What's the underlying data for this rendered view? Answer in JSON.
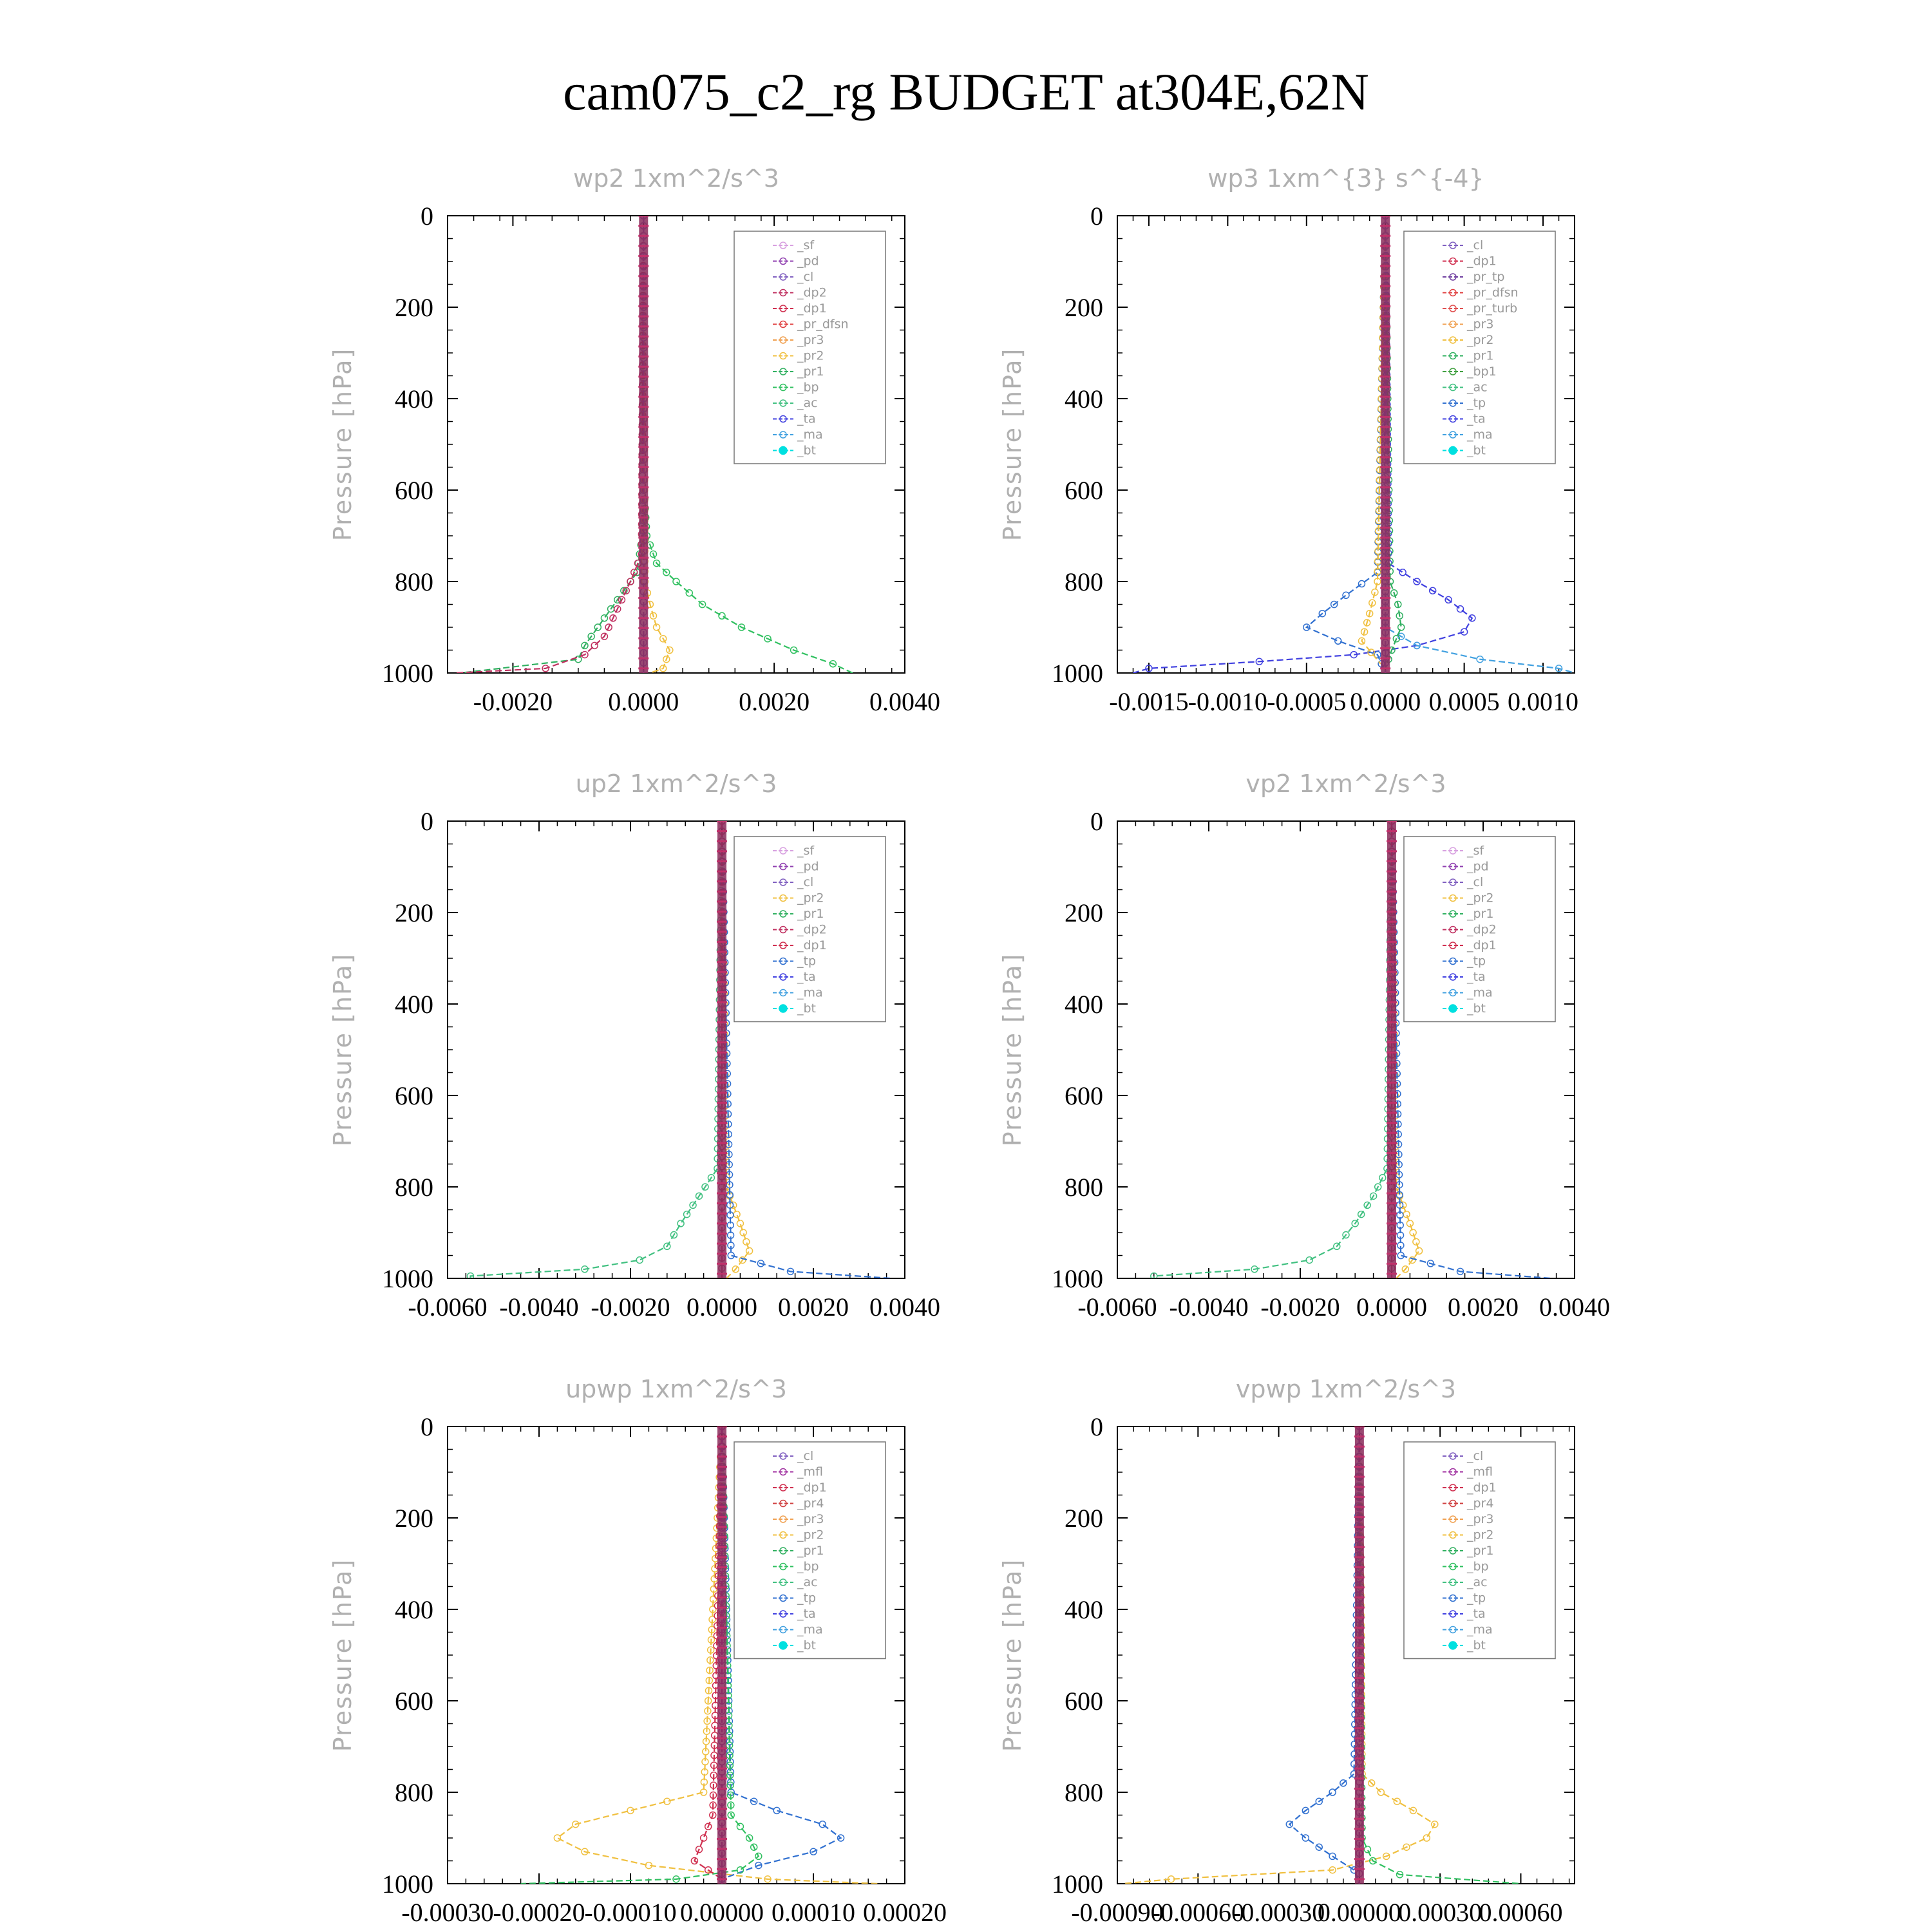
{
  "page_title": "cam075_c2_rg  BUDGET at304E,62N",
  "colors": {
    "sf": "#d8a0e0",
    "pd": "#9040b0",
    "cl": "#8060c0",
    "mfl": "#a030a0",
    "dp2": "#c03060",
    "dp1": "#d03050",
    "pr_dfsn": "#e04040",
    "pr_turb": "#e05050",
    "pr_tp": "#7040a0",
    "pr4": "#d04040",
    "pr3": "#f0a050",
    "pr2": "#f0c040",
    "pr1": "#30b060",
    "bp": "#30c060",
    "bp1": "#40a040",
    "ac": "#40c080",
    "tp": "#3070d0",
    "ta": "#4040e0",
    "ma": "#40a0e0",
    "bt": "#00e0e0"
  },
  "chart_data": [
    {
      "type": "line",
      "title": "wp2   1xm^2/s^3",
      "ylabel": "Pressure [hPa]",
      "ylim": [
        1000,
        0
      ],
      "xlim": [
        -0.003,
        0.004
      ],
      "xticks": [
        "-0.0020",
        "0.0000",
        "0.0020",
        "0.0040"
      ],
      "xtick_values": [
        -0.002,
        0.0,
        0.002,
        0.004
      ],
      "yticks": [
        "0",
        "200",
        "400",
        "600",
        "800",
        "1000"
      ],
      "legend": [
        "_sf",
        "_pd",
        "_cl",
        "_dp2",
        "_dp1",
        "_pr_dfsn",
        "_pr3",
        "_pr2",
        "_pr1",
        "_bp",
        "_ac",
        "_ta",
        "_ma",
        "_bt"
      ],
      "series": [
        {
          "name": "_bp",
          "color_key": "bp",
          "pressure": [
            0,
            600,
            700,
            760,
            800,
            850,
            900,
            950,
            980,
            1000
          ],
          "values": [
            0,
            1e-05,
            5e-05,
            0.0002,
            0.0005,
            0.0009,
            0.0015,
            0.0023,
            0.0029,
            0.0032
          ]
        },
        {
          "name": "_pr1",
          "color_key": "pr1",
          "pressure": [
            0,
            700,
            780,
            820,
            860,
            900,
            940,
            970,
            1000
          ],
          "values": [
            0,
            -2e-05,
            -0.0001,
            -0.0003,
            -0.0005,
            -0.0007,
            -0.0009,
            -0.001,
            -0.0028
          ]
        },
        {
          "name": "_dp2",
          "color_key": "dp2",
          "pressure": [
            0,
            740,
            800,
            860,
            920,
            960,
            990,
            1000
          ],
          "values": [
            0,
            -3e-05,
            -0.0002,
            -0.0004,
            -0.0006,
            -0.0009,
            -0.0015,
            -0.0029
          ]
        },
        {
          "name": "_pr2",
          "color_key": "pr2",
          "pressure": [
            0,
            800,
            850,
            900,
            950,
            990,
            1000
          ],
          "values": [
            0,
            2e-05,
            0.0001,
            0.0002,
            0.0004,
            0.0003,
            0.0001
          ]
        },
        {
          "name": "_bt",
          "color_key": "bt",
          "pressure": [
            0,
            1000
          ],
          "values": [
            0,
            0
          ]
        },
        {
          "name": "_cl",
          "color_key": "cl",
          "pressure": [
            0,
            1000
          ],
          "values": [
            0,
            0
          ]
        }
      ]
    },
    {
      "type": "line",
      "title": "wp3   1xm^{3} s^{-4}",
      "ylabel": "Pressure [hPa]",
      "ylim": [
        1000,
        0
      ],
      "xlim": [
        -0.0017,
        0.0012
      ],
      "xticks": [
        "-0.0015",
        "-0.0010",
        "-0.0005",
        "0.0000",
        "0.0005",
        "0.0010"
      ],
      "xtick_values": [
        -0.0015,
        -0.001,
        -0.0005,
        0.0,
        0.0005,
        0.001
      ],
      "yticks": [
        "0",
        "200",
        "400",
        "600",
        "800",
        "1000"
      ],
      "legend": [
        "_cl",
        "_dp1",
        "_pr_tp",
        "_pr_dfsn",
        "_pr_turb",
        "_pr3",
        "_pr2",
        "_pr1",
        "_bp1",
        "_ac",
        "_tp",
        "_ta",
        "_ma",
        "_bt"
      ],
      "series": [
        {
          "name": "_ta",
          "color_key": "ta",
          "pressure": [
            0,
            760,
            800,
            840,
            880,
            910,
            940,
            960,
            975,
            990,
            1000
          ],
          "values": [
            0,
            2e-05,
            0.0002,
            0.0004,
            0.00055,
            0.0005,
            0.0002,
            -0.0002,
            -0.0008,
            -0.0015,
            -0.0016
          ]
        },
        {
          "name": "_tp",
          "color_key": "tp",
          "pressure": [
            0,
            780,
            830,
            870,
            900,
            930,
            960,
            1000
          ],
          "values": [
            0,
            -5e-05,
            -0.00025,
            -0.0004,
            -0.0005,
            -0.0003,
            -5e-05,
            0
          ]
        },
        {
          "name": "_ma",
          "color_key": "ma",
          "pressure": [
            0,
            900,
            940,
            970,
            990,
            1000
          ],
          "values": [
            0,
            0,
            0.0002,
            0.0006,
            0.0011,
            0.0012
          ]
        },
        {
          "name": "_pr1",
          "color_key": "pr1",
          "pressure": [
            0,
            800,
            850,
            900,
            950,
            990
          ],
          "values": [
            0,
            3e-05,
            8e-05,
            0.0001,
            4e-05,
            0
          ]
        },
        {
          "name": "_pr2",
          "color_key": "pr2",
          "pressure": [
            0,
            800,
            870,
            930,
            980
          ],
          "values": [
            0,
            -5e-05,
            -0.0001,
            -0.00015,
            -3e-05
          ]
        },
        {
          "name": "_bt",
          "color_key": "bt",
          "pressure": [
            0,
            1000
          ],
          "values": [
            0,
            0
          ]
        },
        {
          "name": "_cl",
          "color_key": "cl",
          "pressure": [
            0,
            1000
          ],
          "values": [
            0,
            0
          ]
        }
      ]
    },
    {
      "type": "line",
      "title": "up2   1xm^2/s^3",
      "ylabel": "Pressure [hPa]",
      "ylim": [
        1000,
        0
      ],
      "xlim": [
        -0.006,
        0.004
      ],
      "xticks": [
        "-0.0060",
        "-0.0040",
        "-0.0020",
        "0.0000",
        "0.0020",
        "0.0040"
      ],
      "xtick_values": [
        -0.006,
        -0.004,
        -0.002,
        0.0,
        0.002,
        0.004
      ],
      "yticks": [
        "0",
        "200",
        "400",
        "600",
        "800",
        "1000"
      ],
      "legend": [
        "_sf",
        "_pd",
        "_cl",
        "_pr2",
        "_pr1",
        "_dp2",
        "_dp1",
        "_tp",
        "_ta",
        "_ma",
        "_bt"
      ],
      "series": [
        {
          "name": "_dp1",
          "color_key": "ac",
          "pressure": [
            0,
            760,
            820,
            880,
            930,
            960,
            980,
            995,
            1000
          ],
          "values": [
            0,
            -0.0001,
            -0.0005,
            -0.0009,
            -0.0012,
            -0.0018,
            -0.003,
            -0.0055,
            -0.0055
          ]
        },
        {
          "name": "_pr2",
          "color_key": "pr2",
          "pressure": [
            0,
            800,
            880,
            940,
            980,
            1000
          ],
          "values": [
            0,
            0.0001,
            0.0004,
            0.0006,
            0.0003,
            0.0001
          ]
        },
        {
          "name": "_tp",
          "color_key": "tp",
          "pressure": [
            0,
            950,
            985,
            1000
          ],
          "values": [
            0,
            0.0002,
            0.0015,
            0.0037
          ]
        },
        {
          "name": "_bt",
          "color_key": "bt",
          "pressure": [
            0,
            1000
          ],
          "values": [
            0,
            0
          ]
        },
        {
          "name": "_sf",
          "color_key": "dp2",
          "pressure": [
            0,
            1000
          ],
          "values": [
            0,
            0
          ]
        }
      ]
    },
    {
      "type": "line",
      "title": "vp2   1xm^2/s^3",
      "ylabel": "Pressure [hPa]",
      "ylim": [
        1000,
        0
      ],
      "xlim": [
        -0.006,
        0.004
      ],
      "xticks": [
        "-0.0060",
        "-0.0040",
        "-0.0020",
        "0.0000",
        "0.0020",
        "0.0040"
      ],
      "xtick_values": [
        -0.006,
        -0.004,
        -0.002,
        0.0,
        0.002,
        0.004
      ],
      "yticks": [
        "0",
        "200",
        "400",
        "600",
        "800",
        "1000"
      ],
      "legend": [
        "_sf",
        "_pd",
        "_cl",
        "_pr2",
        "_pr1",
        "_dp2",
        "_dp1",
        "_tp",
        "_ta",
        "_ma",
        "_bt"
      ],
      "series": [
        {
          "name": "_dp1",
          "color_key": "ac",
          "pressure": [
            0,
            760,
            820,
            880,
            930,
            960,
            980,
            995,
            1000
          ],
          "values": [
            0,
            -0.0001,
            -0.0004,
            -0.0008,
            -0.0012,
            -0.0018,
            -0.003,
            -0.0052,
            -0.0052
          ]
        },
        {
          "name": "_pr2",
          "color_key": "pr2",
          "pressure": [
            0,
            800,
            880,
            940,
            980,
            1000
          ],
          "values": [
            0,
            0.0001,
            0.0004,
            0.0006,
            0.0003,
            0.0001
          ]
        },
        {
          "name": "_tp",
          "color_key": "tp",
          "pressure": [
            0,
            950,
            985,
            1000
          ],
          "values": [
            0,
            0.0002,
            0.0015,
            0.0035
          ]
        },
        {
          "name": "_bt",
          "color_key": "bt",
          "pressure": [
            0,
            1000
          ],
          "values": [
            0,
            0
          ]
        },
        {
          "name": "_sf",
          "color_key": "dp2",
          "pressure": [
            0,
            1000
          ],
          "values": [
            0,
            0
          ]
        }
      ]
    },
    {
      "type": "line",
      "title": "upwp   1xm^2/s^3",
      "ylabel": "Pressure [hPa]",
      "ylim": [
        1000,
        0
      ],
      "xlim": [
        -0.0003,
        0.0002
      ],
      "xticks": [
        "-0.00030",
        "-0.00020",
        "-0.00010",
        "0.00000",
        "0.00010",
        "0.00020"
      ],
      "xtick_values": [
        -0.0003,
        -0.0002,
        -0.0001,
        0.0,
        0.0001,
        0.0002
      ],
      "yticks": [
        "0",
        "200",
        "400",
        "600",
        "800",
        "1000"
      ],
      "legend": [
        "_cl",
        "_mfl",
        "_dp1",
        "_pr4",
        "_pr3",
        "_pr2",
        "_pr1",
        "_bp",
        "_ac",
        "_tp",
        "_ta",
        "_ma",
        "_bt"
      ],
      "series": [
        {
          "name": "_pr1",
          "color_key": "pr2",
          "pressure": [
            0,
            800,
            840,
            870,
            900,
            930,
            960,
            990,
            1000
          ],
          "values": [
            0,
            -2e-05,
            -0.0001,
            -0.00016,
            -0.00018,
            -0.00015,
            -8e-05,
            5e-05,
            0.00017
          ]
        },
        {
          "name": "_tp",
          "color_key": "tp",
          "pressure": [
            0,
            800,
            840,
            870,
            900,
            930,
            960,
            990,
            1000
          ],
          "values": [
            0,
            1e-05,
            6e-05,
            0.00011,
            0.00013,
            0.0001,
            4e-05,
            0,
            0
          ]
        },
        {
          "name": "_bp",
          "color_key": "bp",
          "pressure": [
            0,
            850,
            900,
            940,
            970,
            990,
            1000
          ],
          "values": [
            0,
            1e-05,
            3e-05,
            4e-05,
            2e-05,
            -5e-05,
            -0.00022
          ]
        },
        {
          "name": "_dp1",
          "color_key": "dp1",
          "pressure": [
            0,
            850,
            900,
            950,
            990
          ],
          "values": [
            0,
            -1e-05,
            -2e-05,
            -3e-05,
            0
          ]
        },
        {
          "name": "_bt",
          "color_key": "bt",
          "pressure": [
            0,
            1000
          ],
          "values": [
            0,
            0
          ]
        },
        {
          "name": "_cl",
          "color_key": "mfl",
          "pressure": [
            0,
            1000
          ],
          "values": [
            0,
            0
          ]
        }
      ]
    },
    {
      "type": "line",
      "title": "vpwp   1xm^2/s^3",
      "ylabel": "Pressure [hPa]",
      "ylim": [
        1000,
        0
      ],
      "xlim": [
        -0.0009,
        0.0008
      ],
      "xticks": [
        "-0.00090",
        "-0.00060",
        "-0.00030",
        "0.00000",
        "0.00030",
        "0.00060"
      ],
      "xtick_values": [
        -0.0009,
        -0.0006,
        -0.0003,
        0.0,
        0.0003,
        0.0006
      ],
      "yticks": [
        "0",
        "200",
        "400",
        "600",
        "800",
        "1000"
      ],
      "legend": [
        "_cl",
        "_mfl",
        "_dp1",
        "_pr4",
        "_pr3",
        "_pr2",
        "_pr1",
        "_bp",
        "_ac",
        "_tp",
        "_ta",
        "_ma",
        "_bt"
      ],
      "series": [
        {
          "name": "_pr1",
          "color_key": "pr2",
          "pressure": [
            0,
            760,
            800,
            840,
            870,
            900,
            940,
            970,
            990,
            1000
          ],
          "values": [
            0,
            1e-05,
            8e-05,
            0.0002,
            0.00028,
            0.00025,
            0.0001,
            -0.0001,
            -0.0007,
            -0.00088
          ]
        },
        {
          "name": "_tp",
          "color_key": "tp",
          "pressure": [
            0,
            760,
            800,
            840,
            870,
            900,
            940,
            970,
            1000
          ],
          "values": [
            0,
            -2e-05,
            -0.0001,
            -0.0002,
            -0.00026,
            -0.0002,
            -0.0001,
            -2e-05,
            0
          ]
        },
        {
          "name": "_bp",
          "color_key": "bp",
          "pressure": [
            0,
            900,
            950,
            980,
            1000
          ],
          "values": [
            0,
            1e-05,
            5e-05,
            0.00015,
            0.0006
          ]
        },
        {
          "name": "_bt",
          "color_key": "bt",
          "pressure": [
            0,
            1000
          ],
          "values": [
            0,
            0
          ]
        },
        {
          "name": "_cl",
          "color_key": "mfl",
          "pressure": [
            0,
            1000
          ],
          "values": [
            0,
            0
          ]
        }
      ]
    }
  ]
}
